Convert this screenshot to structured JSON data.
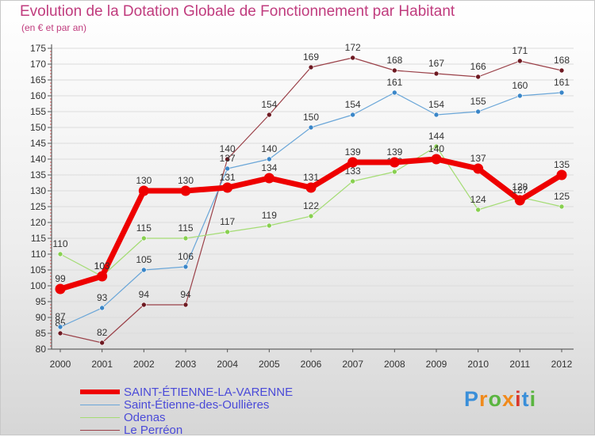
{
  "title": "Evolution de la Dotation Globale de Fonctionnement par Habitant",
  "subtitle": "(en € et par an)",
  "brand": {
    "text": "Proxiti",
    "colors": [
      "#3a8fd9",
      "#f08a1c",
      "#5ab540",
      "#f08a1c",
      "#d9382e",
      "#3a8fd9",
      "#5ab540"
    ]
  },
  "chart_data": {
    "type": "line",
    "title": "Evolution de la Dotation Globale de Fonctionnement par Habitant",
    "subtitle": "(en € et par an)",
    "xlabel": "",
    "ylabel": "",
    "ylim": [
      80,
      175
    ],
    "yticks": [
      80,
      85,
      90,
      95,
      100,
      105,
      110,
      115,
      120,
      125,
      130,
      135,
      140,
      145,
      150,
      155,
      160,
      165,
      170,
      175
    ],
    "x": [
      "2000",
      "2001",
      "2002",
      "2003",
      "2004",
      "2005",
      "2006",
      "2007",
      "2008",
      "2009",
      "2010",
      "2011",
      "2012"
    ],
    "series": [
      {
        "name": "Le Perréon",
        "color": "#6e1a22",
        "line_color": "#9a4048",
        "values": [
          85,
          82,
          94,
          94,
          140,
          154,
          169,
          172,
          168,
          167,
          166,
          171,
          168
        ]
      },
      {
        "name": "Saint-Étienne-des-Oullières",
        "color": "#3a86c8",
        "line_color": "#6aa6d8",
        "values": [
          87,
          93,
          105,
          106,
          137,
          140,
          150,
          154,
          161,
          154,
          155,
          160,
          161
        ]
      },
      {
        "name": "Odenas",
        "color": "#88d050",
        "line_color": "#a4dc74",
        "values": [
          110,
          103,
          115,
          115,
          117,
          119,
          122,
          133,
          136,
          144,
          124,
          128,
          125
        ]
      },
      {
        "name": "SAINT-ÉTIENNE-LA-VARENNE",
        "color": "#ee0000",
        "line_color": "#ee0000",
        "values": [
          99,
          103,
          130,
          130,
          131,
          134,
          131,
          139,
          139,
          140,
          137,
          127,
          135
        ]
      }
    ],
    "legend": [
      "SAINT-ÉTIENNE-LA-VARENNE",
      "Saint-Étienne-des-Oullières",
      "Odenas",
      "Le Perréon"
    ]
  }
}
